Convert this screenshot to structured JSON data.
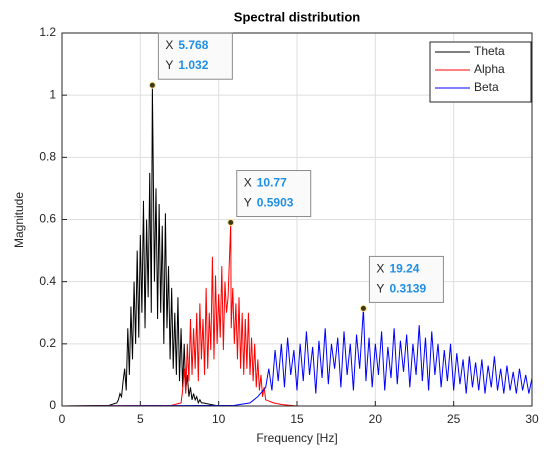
{
  "chart_data": {
    "type": "line",
    "title": "Spectral distribution",
    "x_label": "Frequency [Hz]",
    "y_label": "Magnitude",
    "xlim": [
      0,
      30
    ],
    "ylim": [
      0,
      1.2
    ],
    "xticks": [
      0,
      5,
      10,
      15,
      20,
      25,
      30
    ],
    "yticks": [
      0,
      0.2,
      0.4,
      0.6,
      0.8,
      1,
      1.2
    ],
    "grid": true,
    "legend_position": "northeast",
    "series": [
      {
        "name": "Theta",
        "color": "#000000",
        "x": [
          0,
          3,
          3.5,
          3.6,
          3.7,
          3.8,
          3.9,
          4.0,
          4.1,
          4.2,
          4.3,
          4.4,
          4.5,
          4.6,
          4.7,
          4.8,
          4.9,
          5.0,
          5.1,
          5.2,
          5.3,
          5.4,
          5.5,
          5.6,
          5.7,
          5.768,
          5.9,
          6.0,
          6.1,
          6.2,
          6.3,
          6.4,
          6.5,
          6.6,
          6.7,
          6.8,
          6.9,
          7.0,
          7.1,
          7.2,
          7.3,
          7.4,
          7.5,
          7.6,
          7.7,
          7.8,
          7.9,
          8.0,
          8.1,
          8.2,
          8.3,
          8.4,
          8.5,
          8.6,
          8.7,
          8.8,
          8.9,
          9.0,
          9.5,
          10,
          30
        ],
        "values": [
          0,
          0.002,
          0.01,
          0.02,
          0.04,
          0.03,
          0.08,
          0.12,
          0.05,
          0.25,
          0.1,
          0.32,
          0.15,
          0.4,
          0.2,
          0.5,
          0.22,
          0.55,
          0.3,
          0.66,
          0.25,
          0.6,
          0.35,
          0.75,
          0.3,
          1.032,
          0.4,
          0.7,
          0.28,
          0.65,
          0.3,
          0.58,
          0.2,
          0.62,
          0.25,
          0.45,
          0.15,
          0.38,
          0.12,
          0.3,
          0.1,
          0.35,
          0.08,
          0.25,
          0.06,
          0.2,
          0.05,
          0.1,
          0.03,
          0.06,
          0.02,
          0.04,
          0.02,
          0.03,
          0.01,
          0.02,
          0.01,
          0.01,
          0.005,
          0,
          0
        ]
      },
      {
        "name": "Alpha",
        "color": "#ff0000",
        "x": [
          0,
          7,
          7.6,
          7.7,
          7.8,
          7.9,
          8.0,
          8.1,
          8.2,
          8.3,
          8.4,
          8.5,
          8.6,
          8.7,
          8.8,
          8.9,
          9.0,
          9.1,
          9.2,
          9.3,
          9.4,
          9.5,
          9.6,
          9.7,
          9.8,
          9.9,
          10.0,
          10.1,
          10.2,
          10.3,
          10.4,
          10.5,
          10.6,
          10.77,
          10.8,
          10.9,
          11.0,
          11.1,
          11.2,
          11.3,
          11.4,
          11.5,
          11.6,
          11.7,
          11.8,
          11.9,
          12.0,
          12.1,
          12.2,
          12.3,
          12.4,
          12.5,
          12.6,
          12.7,
          12.8,
          12.9,
          13.0,
          13.5,
          14,
          15,
          30
        ],
        "values": [
          0,
          0.002,
          0.01,
          0.05,
          0.12,
          0.04,
          0.2,
          0.08,
          0.28,
          0.1,
          0.25,
          0.12,
          0.3,
          0.08,
          0.33,
          0.15,
          0.28,
          0.1,
          0.38,
          0.12,
          0.3,
          0.18,
          0.48,
          0.15,
          0.42,
          0.2,
          0.36,
          0.22,
          0.45,
          0.18,
          0.4,
          0.3,
          0.35,
          0.5903,
          0.25,
          0.38,
          0.2,
          0.33,
          0.15,
          0.35,
          0.12,
          0.3,
          0.1,
          0.28,
          0.12,
          0.3,
          0.1,
          0.22,
          0.08,
          0.2,
          0.06,
          0.15,
          0.05,
          0.1,
          0.03,
          0.06,
          0.02,
          0.01,
          0.005,
          0,
          0
        ]
      },
      {
        "name": "Beta",
        "color": "#0000ff",
        "x": [
          0,
          11,
          12,
          12.5,
          13,
          13.2,
          13.4,
          13.6,
          13.8,
          14.0,
          14.2,
          14.4,
          14.6,
          14.8,
          15.0,
          15.2,
          15.4,
          15.6,
          15.8,
          16.0,
          16.2,
          16.4,
          16.6,
          16.8,
          17.0,
          17.2,
          17.4,
          17.6,
          17.8,
          18.0,
          18.2,
          18.4,
          18.6,
          18.8,
          19.0,
          19.24,
          19.4,
          19.6,
          19.8,
          20.0,
          20.2,
          20.4,
          20.6,
          20.8,
          21.0,
          21.2,
          21.4,
          21.6,
          21.8,
          22.0,
          22.2,
          22.4,
          22.6,
          22.8,
          23.0,
          23.2,
          23.4,
          23.6,
          23.8,
          24.0,
          24.2,
          24.4,
          24.6,
          24.8,
          25.0,
          25.2,
          25.4,
          25.6,
          25.8,
          26.0,
          26.2,
          26.4,
          26.6,
          26.8,
          27.0,
          27.2,
          27.4,
          27.6,
          27.8,
          28.0,
          28.2,
          28.4,
          28.6,
          28.8,
          29.0,
          29.2,
          29.4,
          29.6,
          29.8,
          30.0
        ],
        "values": [
          0,
          0.002,
          0.01,
          0.03,
          0.06,
          0.12,
          0.05,
          0.18,
          0.08,
          0.2,
          0.06,
          0.22,
          0.1,
          0.18,
          0.05,
          0.2,
          0.08,
          0.24,
          0.1,
          0.19,
          0.04,
          0.21,
          0.09,
          0.25,
          0.07,
          0.2,
          0.12,
          0.22,
          0.06,
          0.24,
          0.1,
          0.2,
          0.05,
          0.23,
          0.12,
          0.3139,
          0.08,
          0.22,
          0.06,
          0.2,
          0.1,
          0.24,
          0.05,
          0.19,
          0.09,
          0.25,
          0.07,
          0.21,
          0.11,
          0.23,
          0.06,
          0.2,
          0.1,
          0.26,
          0.08,
          0.22,
          0.05,
          0.24,
          0.1,
          0.2,
          0.06,
          0.18,
          0.08,
          0.2,
          0.05,
          0.17,
          0.07,
          0.15,
          0.04,
          0.16,
          0.06,
          0.14,
          0.05,
          0.15,
          0.04,
          0.13,
          0.06,
          0.16,
          0.05,
          0.12,
          0.04,
          0.13,
          0.05,
          0.11,
          0.04,
          0.12,
          0.05,
          0.1,
          0.04,
          0.09
        ]
      }
    ],
    "datatip_labels": [
      "X",
      "Y"
    ],
    "datatips": [
      {
        "x": 5.768,
        "y": 1.032
      },
      {
        "x": 10.77,
        "y": 0.5903
      },
      {
        "x": 19.24,
        "y": 0.3139
      }
    ]
  }
}
